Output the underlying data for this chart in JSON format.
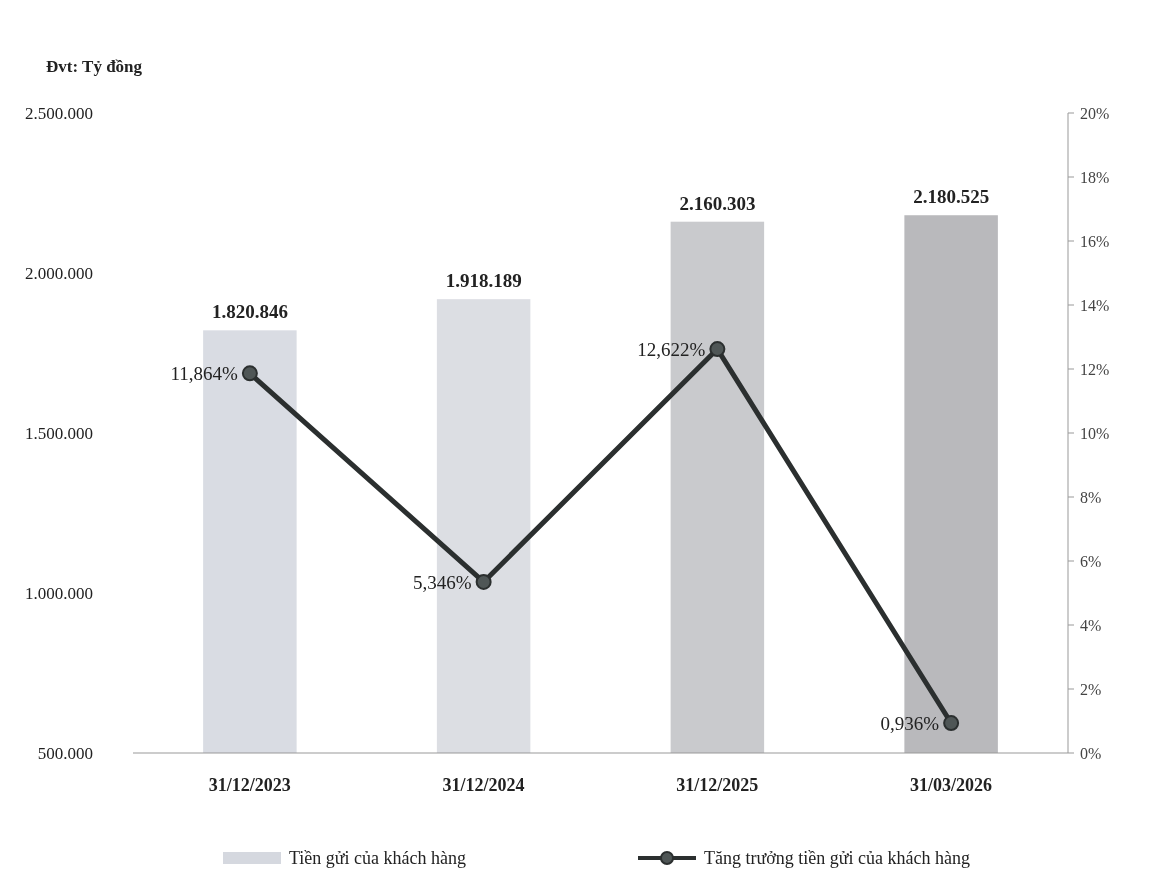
{
  "chart_data": {
    "type": "bar",
    "ylabel": "Đvt: Tỷ đồng",
    "categories": [
      "31/12/2023",
      "31/12/2024",
      "31/12/2025",
      "31/03/2026"
    ],
    "ylim": [
      500000,
      2500000
    ],
    "yticks": [
      {
        "value": 500000,
        "label": "500.000"
      },
      {
        "value": 1000000,
        "label": "1.000.000"
      },
      {
        "value": 1500000,
        "label": "1.500.000"
      },
      {
        "value": 2000000,
        "label": "2.000.000"
      },
      {
        "value": 2500000,
        "label": "2.500.000"
      }
    ],
    "y2lim": [
      0,
      20
    ],
    "y2ticks": [
      {
        "value": 0,
        "label": "0%"
      },
      {
        "value": 2,
        "label": "2%"
      },
      {
        "value": 4,
        "label": "4%"
      },
      {
        "value": 6,
        "label": "6%"
      },
      {
        "value": 8,
        "label": "8%"
      },
      {
        "value": 10,
        "label": "10%"
      },
      {
        "value": 12,
        "label": "12%"
      },
      {
        "value": 14,
        "label": "14%"
      },
      {
        "value": 16,
        "label": "16%"
      },
      {
        "value": 18,
        "label": "18%"
      },
      {
        "value": 20,
        "label": "20%"
      }
    ],
    "series": [
      {
        "name": "Tiền gửi của khách hàng",
        "color": "#d5d8df",
        "colors": [
          "#d9dce3",
          "#dcdee3",
          "#c9cacd",
          "#b9b9bc"
        ],
        "values": [
          1820846,
          1918189,
          2160303,
          2180525
        ],
        "value_labels": [
          "1.820.846",
          "1.918.189",
          "2.160.303",
          "2.180.525"
        ]
      },
      {
        "name": "Tăng trưởng tiền gửi của khách hàng",
        "type": "line",
        "axis": "y2",
        "color": "#2b2f2f",
        "marker": "circle",
        "values": [
          11.864,
          5.346,
          12.622,
          0.936
        ],
        "value_labels": [
          "11,864%",
          "5,346%",
          "12,622%",
          "0,936%"
        ]
      }
    ],
    "grid": false,
    "legend": "bottom"
  }
}
